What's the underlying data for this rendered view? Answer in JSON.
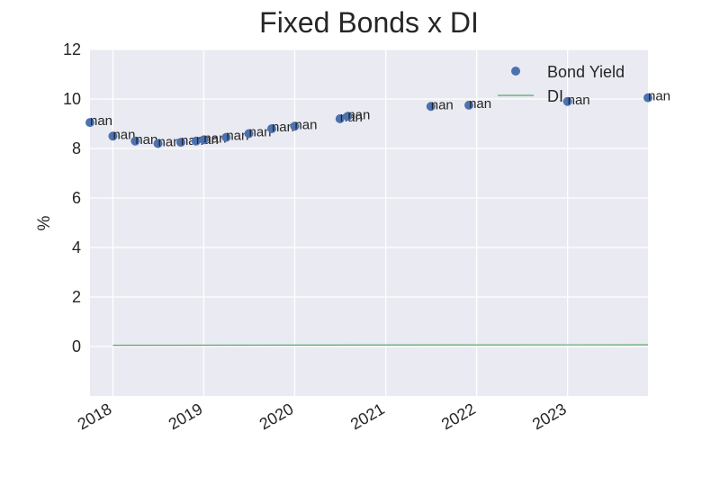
{
  "chart_data": {
    "type": "line",
    "title": "Fixed Bonds x DI",
    "xlabel": "",
    "ylabel": "%",
    "xlim": [
      "2017-10-01",
      "2023-11-20"
    ],
    "ylim": [
      -2,
      12
    ],
    "x_ticks": [
      "2018",
      "2019",
      "2020",
      "2021",
      "2022",
      "2023"
    ],
    "y_ticks": [
      0,
      2,
      4,
      6,
      8,
      10,
      12
    ],
    "grid": true,
    "legend_position": "top-right",
    "colors": {
      "bond": "#4c72b0",
      "di": "#55a868",
      "plot_bg": "#eaeaf2",
      "grid": "#ffffff"
    },
    "series": [
      {
        "name": "Bond Yield",
        "style": "markers",
        "points": [
          {
            "x": "2017-10-01",
            "y": 9.05,
            "label": "nan"
          },
          {
            "x": "2018-01-01",
            "y": 8.5,
            "label": "nan"
          },
          {
            "x": "2018-04-01",
            "y": 8.3,
            "label": "nan"
          },
          {
            "x": "2018-07-01",
            "y": 8.2,
            "label": "nan"
          },
          {
            "x": "2018-10-01",
            "y": 8.25,
            "label": "nan"
          },
          {
            "x": "2018-12-01",
            "y": 8.3,
            "label": "nan"
          },
          {
            "x": "2019-01-01",
            "y": 8.35,
            "label": "nan"
          },
          {
            "x": "2019-04-01",
            "y": 8.45,
            "label": "nan"
          },
          {
            "x": "2019-07-01",
            "y": 8.6,
            "label": "nan"
          },
          {
            "x": "2019-10-01",
            "y": 8.8,
            "label": "nan"
          },
          {
            "x": "2020-01-01",
            "y": 8.9,
            "label": "nan"
          },
          {
            "x": "2020-07-01",
            "y": 9.2,
            "label": "nan"
          },
          {
            "x": "2020-08-01",
            "y": 9.3,
            "label": "nan"
          },
          {
            "x": "2021-07-01",
            "y": 9.7,
            "label": "nan"
          },
          {
            "x": "2021-12-01",
            "y": 9.75,
            "label": "nan"
          },
          {
            "x": "2023-01-01",
            "y": 9.9,
            "label": "nan"
          },
          {
            "x": "2023-11-20",
            "y": 10.05,
            "label": "nan"
          }
        ]
      },
      {
        "name": "DI",
        "style": "line",
        "points": [
          {
            "x": "2018-01-01",
            "y": 0.05
          },
          {
            "x": "2023-11-20",
            "y": 0.07
          }
        ]
      }
    ]
  }
}
